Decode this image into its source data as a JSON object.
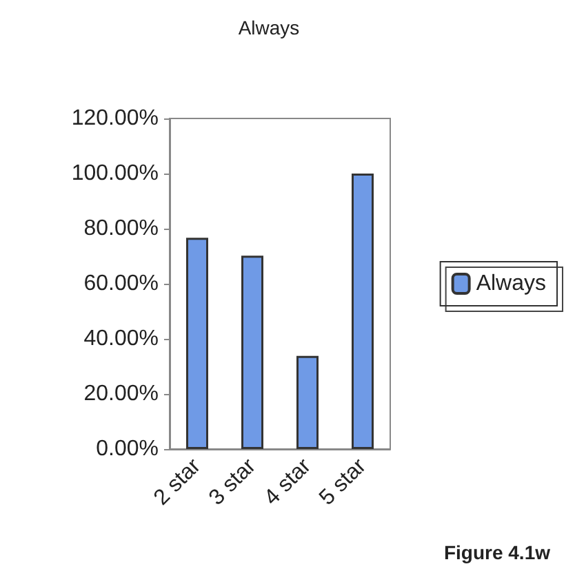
{
  "chart_data": {
    "type": "bar",
    "title": "Always",
    "categories": [
      "2 star",
      "3 star",
      "4 star",
      "5 star"
    ],
    "series": [
      {
        "name": "Always",
        "color": "#6f9ae6",
        "values": [
          76.7,
          70.2,
          33.8,
          100
        ]
      }
    ],
    "ylim": [
      0,
      120
    ],
    "yticks": [
      {
        "value": 0,
        "label": "0.00%"
      },
      {
        "value": 20,
        "label": "20.00%"
      },
      {
        "value": 40,
        "label": "40.00%"
      },
      {
        "value": 60,
        "label": "60.00%"
      },
      {
        "value": 80,
        "label": "80.00%"
      },
      {
        "value": 100,
        "label": "100.00%"
      },
      {
        "value": 120,
        "label": "120.00%"
      }
    ],
    "grid": false,
    "legend": "right",
    "annotations": [
      "Figure 4.1w"
    ]
  }
}
